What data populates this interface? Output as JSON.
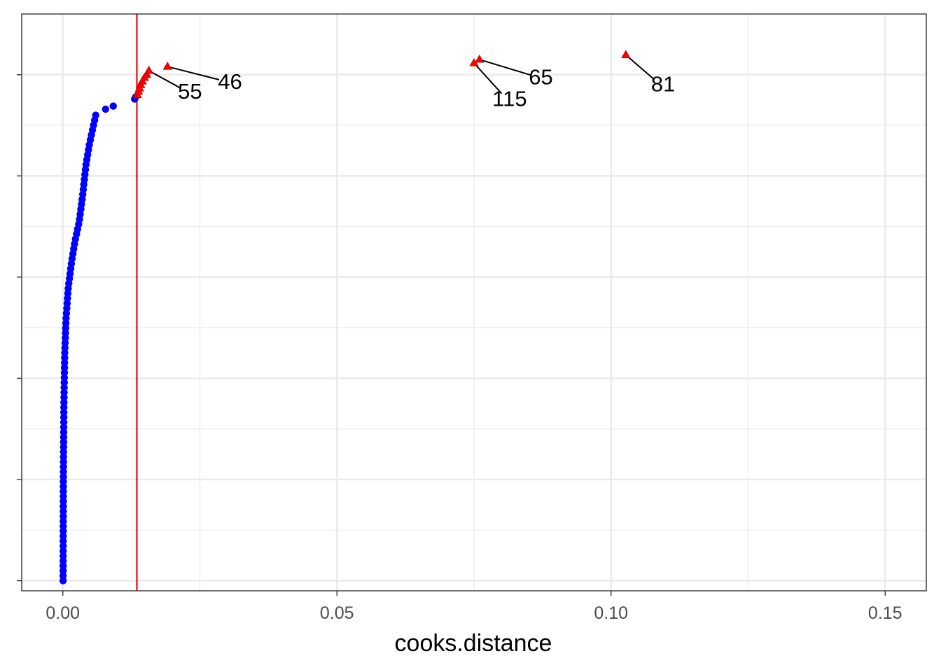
{
  "chart_data": {
    "type": "scatter",
    "title": "",
    "xlabel": "cooks.distance",
    "ylabel": "",
    "xlim": [
      -0.0075,
      0.1575
    ],
    "ylim": [
      -2,
      112
    ],
    "x_ticks": [
      0.0,
      0.05,
      0.1,
      0.15
    ],
    "x_tick_labels": [
      "0.00",
      "0.05",
      "0.10",
      "0.15"
    ],
    "y_ticks": [
      0,
      20,
      40,
      60,
      80,
      100
    ],
    "grid": true,
    "threshold": {
      "x": 0.0135,
      "color": "#ff0000"
    },
    "colors": {
      "normal": "#0000ff",
      "influential": "#ff0000",
      "label_line": "#000000"
    },
    "normal_curve": {
      "points": [
        [
          5e-05,
          0
        ],
        [
          0.0001,
          20
        ],
        [
          0.0002,
          35
        ],
        [
          0.00035,
          45
        ],
        [
          0.0006,
          52
        ],
        [
          0.001,
          58
        ],
        [
          0.0016,
          63
        ],
        [
          0.0022,
          67
        ],
        [
          0.003,
          71
        ],
        [
          0.0036,
          76
        ],
        [
          0.0042,
          82
        ],
        [
          0.0048,
          86
        ],
        [
          0.006,
          92
        ]
      ],
      "count": 95,
      "extra": [
        [
          0.0078,
          93.2
        ],
        [
          0.0092,
          93.8
        ],
        [
          0.0131,
          95.2
        ],
        [
          0.0133,
          95.6
        ]
      ]
    },
    "influential": [
      {
        "x": 0.0136,
        "y": 96.0
      },
      {
        "x": 0.0138,
        "y": 96.7
      },
      {
        "x": 0.014,
        "y": 97.3
      },
      {
        "x": 0.0142,
        "y": 98.0
      },
      {
        "x": 0.0145,
        "y": 98.7
      },
      {
        "x": 0.0149,
        "y": 99.4
      },
      {
        "x": 0.0153,
        "y": 100.0
      },
      {
        "x": 0.0157,
        "y": 100.8,
        "label": "55",
        "lx": 0.0232,
        "ly": 96.8
      },
      {
        "x": 0.0191,
        "y": 101.6,
        "label": "46",
        "lx": 0.0305,
        "ly": 98.7
      },
      {
        "x": 0.075,
        "y": 102.3,
        "label": "115",
        "lx": 0.0815,
        "ly": 95.3
      },
      {
        "x": 0.076,
        "y": 103.0,
        "label": "65",
        "lx": 0.0872,
        "ly": 99.6
      },
      {
        "x": 0.1027,
        "y": 103.9,
        "label": "81",
        "lx": 0.1095,
        "ly": 98.2
      }
    ]
  }
}
